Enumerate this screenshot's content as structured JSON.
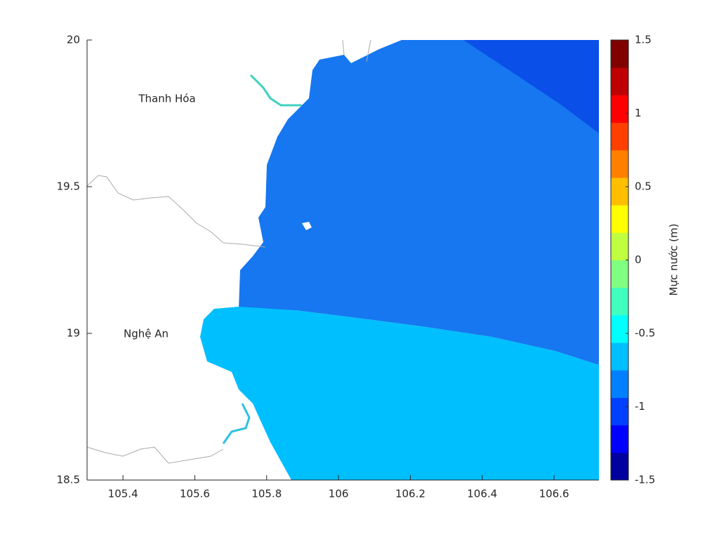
{
  "chart_data": {
    "type": "map",
    "xlim": [
      105.3,
      106.725
    ],
    "ylim": [
      18.5,
      20
    ],
    "xticks": [
      105.4,
      105.6,
      105.8,
      106,
      106.2,
      106.4,
      106.6
    ],
    "yticks": [
      18.5,
      19,
      19.5,
      20
    ],
    "annotations": [
      "Thanh Hóa",
      "Nghệ An"
    ],
    "colorbar": {
      "label": "Mực nước (m)",
      "clim": [
        -1.5,
        1.5
      ],
      "ticks": [
        -1.5,
        -1,
        -0.5,
        0,
        0.5,
        1,
        1.5
      ],
      "colors": [
        "#00009f",
        "#0000ff",
        "#0040ff",
        "#0080ff",
        "#00bfff",
        "#00ffff",
        "#40ffbf",
        "#80ff80",
        "#bfff40",
        "#ffff00",
        "#ffbf00",
        "#ff8000",
        "#ff4000",
        "#ff0000",
        "#bf0000",
        "#800000"
      ]
    }
  }
}
